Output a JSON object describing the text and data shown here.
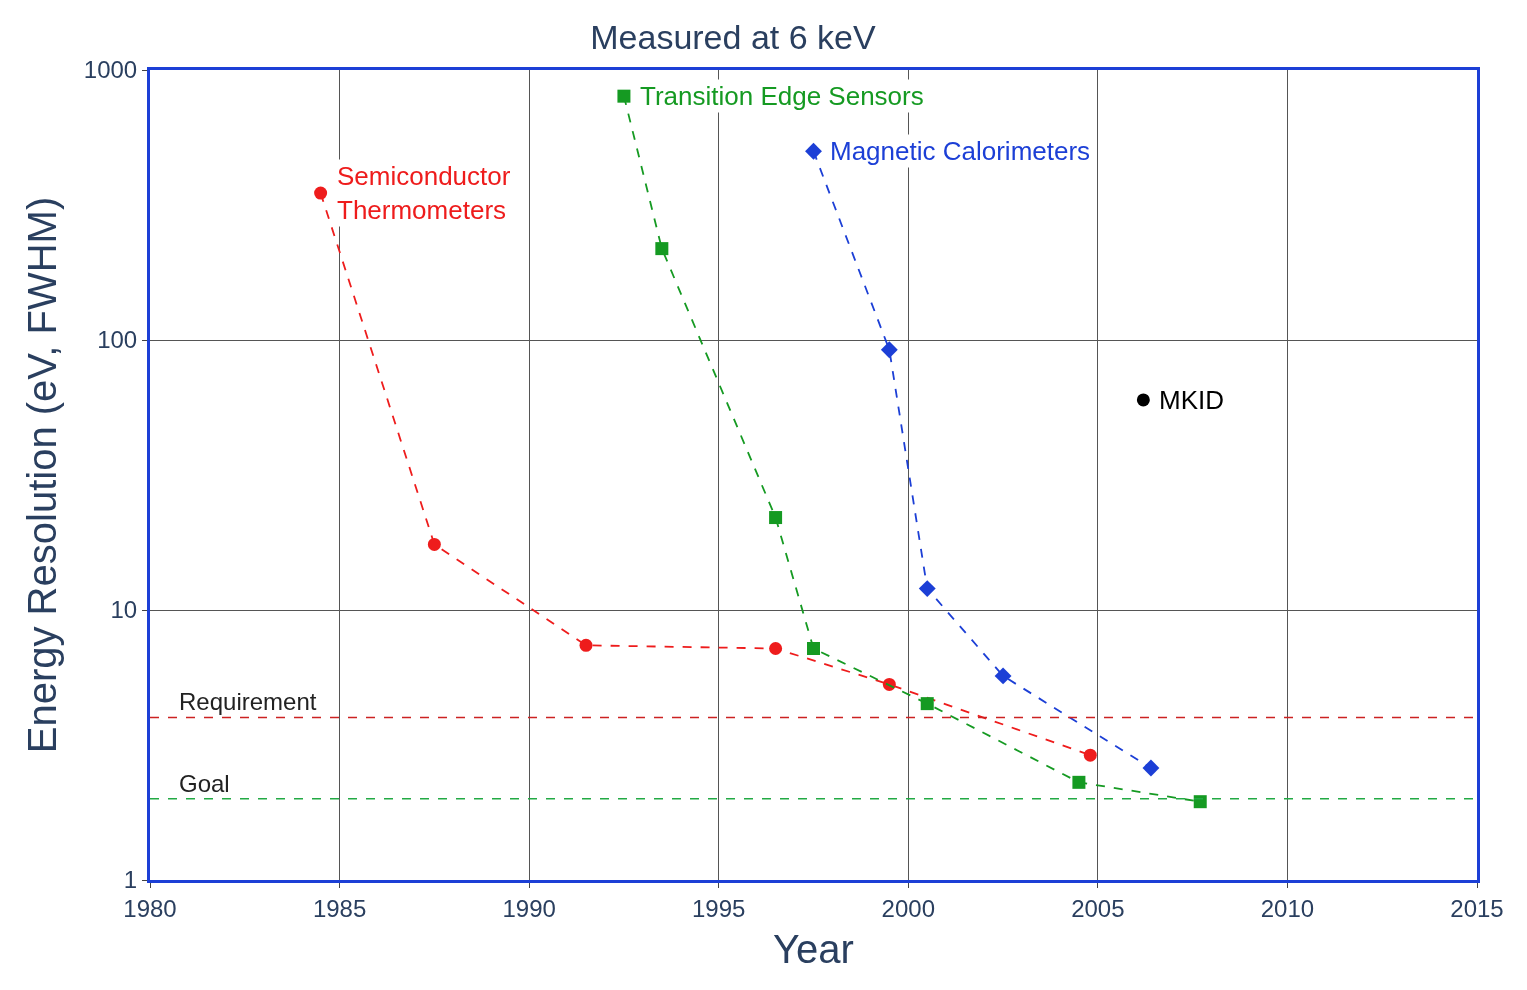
{
  "chart_data": {
    "type": "line",
    "title": "Measured at 6 keV",
    "xlabel": "Year",
    "ylabel": "Energy Resolution (eV, FWHM)",
    "series": [
      {
        "name": "Semiconductor Thermometers",
        "color": "#ee1c1c",
        "marker": "circle",
        "line_style": "dashed",
        "x": [
          1984.5,
          1987.5,
          1991.5,
          1996.5,
          1999.5,
          2004.8
        ],
        "values": [
          350,
          17.5,
          7.4,
          7.2,
          5.3,
          2.9
        ]
      },
      {
        "name": "Transition Edge Sensors",
        "color": "#159a22",
        "marker": "square",
        "line_style": "dashed",
        "x": [
          1992.5,
          1993.5,
          1996.5,
          1997.5,
          2000.5,
          2004.5,
          2007.7
        ],
        "values": [
          800,
          218,
          22,
          7.2,
          4.5,
          2.3,
          1.95
        ]
      },
      {
        "name": "Magnetic Calorimeters",
        "color": "#1c3fd6",
        "marker": "diamond",
        "line_style": "dashed",
        "x": [
          1997.5,
          1999.5,
          2000.5,
          2002.5,
          2006.4
        ],
        "values": [
          500,
          92,
          12,
          5.7,
          2.6
        ]
      },
      {
        "name": "MKID",
        "color": "#000000",
        "type": "scatter",
        "marker": "circle",
        "x": [
          2006.2
        ],
        "values": [
          60
        ]
      }
    ],
    "ref_lines": [
      {
        "axis": "y",
        "value": 4,
        "label": "Requirement",
        "color": "#cc2222",
        "line_style": "dashed"
      },
      {
        "axis": "y",
        "value": 2,
        "label": "Goal",
        "color": "#22aa44",
        "line_style": "dashed"
      }
    ],
    "log": true,
    "xlim": [
      1980,
      2015
    ],
    "xticks": [
      1980,
      1985,
      1990,
      1995,
      2000,
      2005,
      2010,
      2015
    ],
    "ylim": [
      1,
      1000
    ],
    "yticks": [
      1,
      10,
      100,
      1000
    ],
    "grid": true,
    "legend": false
  }
}
